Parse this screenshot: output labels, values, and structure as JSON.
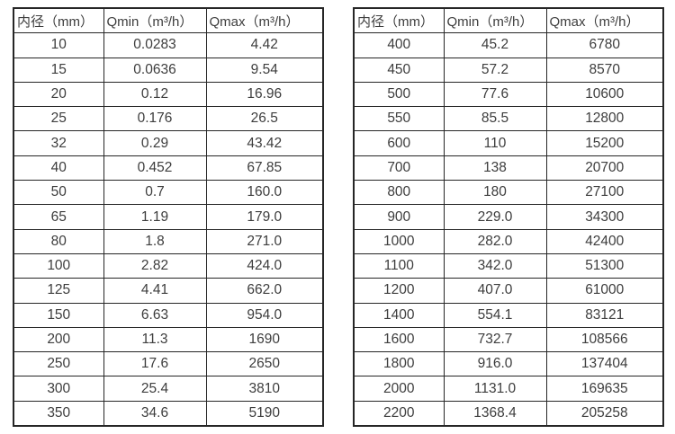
{
  "colors": {
    "border": "#262626",
    "text": "#3d3d3d",
    "background": "#ffffff"
  },
  "tables": [
    {
      "name": "flow-table-small-diameters",
      "headers": [
        "内径（mm）",
        "Qmin（m³/h）",
        "Qmax（m³/h）"
      ],
      "rows": [
        [
          "10",
          "0.0283",
          "4.42"
        ],
        [
          "15",
          "0.0636",
          "9.54"
        ],
        [
          "20",
          "0.12",
          "16.96"
        ],
        [
          "25",
          "0.176",
          "26.5"
        ],
        [
          "32",
          "0.29",
          "43.42"
        ],
        [
          "40",
          "0.452",
          "67.85"
        ],
        [
          "50",
          "0.7",
          "160.0"
        ],
        [
          "65",
          "1.19",
          "179.0"
        ],
        [
          "80",
          "1.8",
          "271.0"
        ],
        [
          "100",
          "2.82",
          "424.0"
        ],
        [
          "125",
          "4.41",
          "662.0"
        ],
        [
          "150",
          "6.63",
          "954.0"
        ],
        [
          "200",
          "11.3",
          "1690"
        ],
        [
          "250",
          "17.6",
          "2650"
        ],
        [
          "300",
          "25.4",
          "3810"
        ],
        [
          "350",
          "34.6",
          "5190"
        ]
      ]
    },
    {
      "name": "flow-table-large-diameters",
      "headers": [
        "内径（mm）",
        "Qmin（m³/h）",
        "Qmax（m³/h）"
      ],
      "rows": [
        [
          "400",
          "45.2",
          "6780"
        ],
        [
          "450",
          "57.2",
          "8570"
        ],
        [
          "500",
          "77.6",
          "10600"
        ],
        [
          "550",
          "85.5",
          "12800"
        ],
        [
          "600",
          "110",
          "15200"
        ],
        [
          "700",
          "138",
          "20700"
        ],
        [
          "800",
          "180",
          "27100"
        ],
        [
          "900",
          "229.0",
          "34300"
        ],
        [
          "1000",
          "282.0",
          "42400"
        ],
        [
          "1100",
          "342.0",
          "51300"
        ],
        [
          "1200",
          "407.0",
          "61000"
        ],
        [
          "1400",
          "554.1",
          "83121"
        ],
        [
          "1600",
          "732.7",
          "108566"
        ],
        [
          "1800",
          "916.0",
          "137404"
        ],
        [
          "2000",
          "1131.0",
          "169635"
        ],
        [
          "2200",
          "1368.4",
          "205258"
        ]
      ]
    }
  ]
}
